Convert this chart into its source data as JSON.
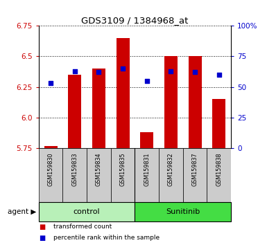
{
  "title": "GDS3109 / 1384968_at",
  "samples": [
    "GSM159830",
    "GSM159833",
    "GSM159834",
    "GSM159835",
    "GSM159831",
    "GSM159832",
    "GSM159837",
    "GSM159838"
  ],
  "groups": [
    "control",
    "control",
    "control",
    "control",
    "Sunitinib",
    "Sunitinib",
    "Sunitinib",
    "Sunitinib"
  ],
  "transformed_count": [
    5.77,
    6.35,
    6.4,
    6.65,
    5.88,
    6.5,
    6.5,
    6.15
  ],
  "percentile_rank": [
    53,
    63,
    62,
    65,
    55,
    63,
    62,
    60
  ],
  "ylim_left": [
    5.75,
    6.75
  ],
  "ylim_right": [
    0,
    100
  ],
  "yticks_left": [
    5.75,
    6.0,
    6.25,
    6.5,
    6.75
  ],
  "yticks_right": [
    0,
    25,
    50,
    75,
    100
  ],
  "ytick_labels_right": [
    "0",
    "25",
    "50",
    "75",
    "100%"
  ],
  "bar_color": "#cc0000",
  "dot_color": "#0000cc",
  "bar_bottom": 5.75,
  "control_color": "#b8f0b8",
  "sunitinib_color": "#44dd44",
  "sample_bg_color": "#cccccc",
  "title_color": "#000000",
  "left_axis_color": "#cc0000",
  "right_axis_color": "#0000cc",
  "legend_bar_label": "transformed count",
  "legend_dot_label": "percentile rank within the sample",
  "agent_label": "agent",
  "control_label": "control",
  "sunitinib_label": "Sunitinib"
}
